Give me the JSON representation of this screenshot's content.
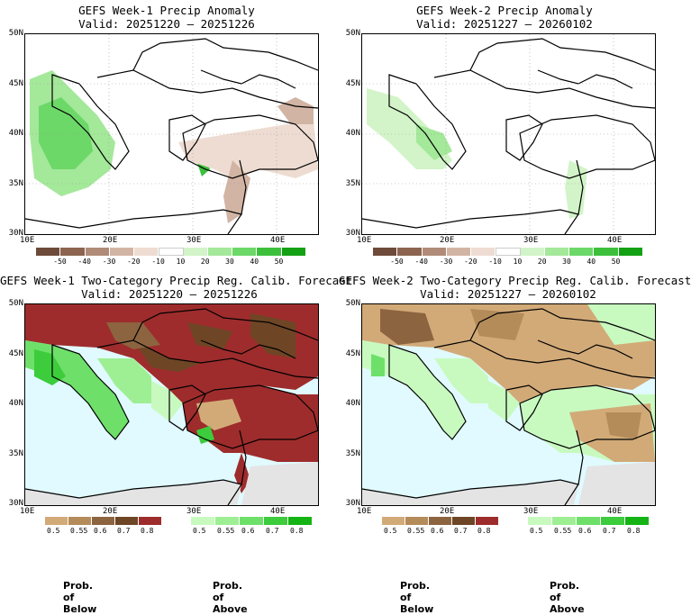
{
  "panels": [
    {
      "id": "p1",
      "title": "GEFS Week-1 Precip Anomaly",
      "valid": "Valid: 20251220 – 20251226",
      "type": "anomaly"
    },
    {
      "id": "p2",
      "title": "GEFS Week-2 Precip Anomaly",
      "valid": "Valid: 20251227 – 20260102",
      "type": "anomaly"
    },
    {
      "id": "p3",
      "title": "GEFS Week-1 Two-Category Precip Reg. Calib. Forecast",
      "valid": "Valid: 20251220 – 20251226",
      "type": "prob"
    },
    {
      "id": "p4",
      "title": "GEFS Week-2 Two-Category Precip Reg. Calib. Forecast",
      "valid": "Valid: 20251227 – 20260102",
      "type": "prob"
    }
  ],
  "lat_labels": [
    "50N",
    "45N",
    "40N",
    "35N",
    "30N"
  ],
  "lon_labels": [
    "10E",
    "20E",
    "30E",
    "40E"
  ],
  "anomaly_scale": {
    "labels": [
      "-50",
      "-40",
      "-30",
      "-20",
      "-10",
      "10",
      "20",
      "30",
      "40",
      "50"
    ],
    "colors": [
      "#6e4a3a",
      "#8c6450",
      "#b08c78",
      "#d2b4a4",
      "#eedcd2",
      "#ffffff",
      "#d2f4c8",
      "#a4e89a",
      "#6cd868",
      "#3cc03c",
      "#14a014"
    ]
  },
  "below_scale": {
    "labels": [
      "0.5",
      "0.55",
      "0.6",
      "0.7",
      "0.8"
    ],
    "colors": [
      "#d2aa78",
      "#b48c5a",
      "#8c6440",
      "#6e4626",
      "#9e2c2c"
    ]
  },
  "above_scale": {
    "labels": [
      "0.5",
      "0.55",
      "0.6",
      "0.7",
      "0.8"
    ],
    "colors": [
      "#c8fac0",
      "#9eef94",
      "#6ee06a",
      "#3ccc3c",
      "#14b414"
    ]
  },
  "colors": {
    "sea": "#e0faff",
    "ocean_grey": "#e4e4e4",
    "below_text": "#6e3a1a",
    "above_text": "#1eb41e"
  },
  "legend_text": {
    "below": "Prob. of Below",
    "above": "Prob. of Above"
  }
}
